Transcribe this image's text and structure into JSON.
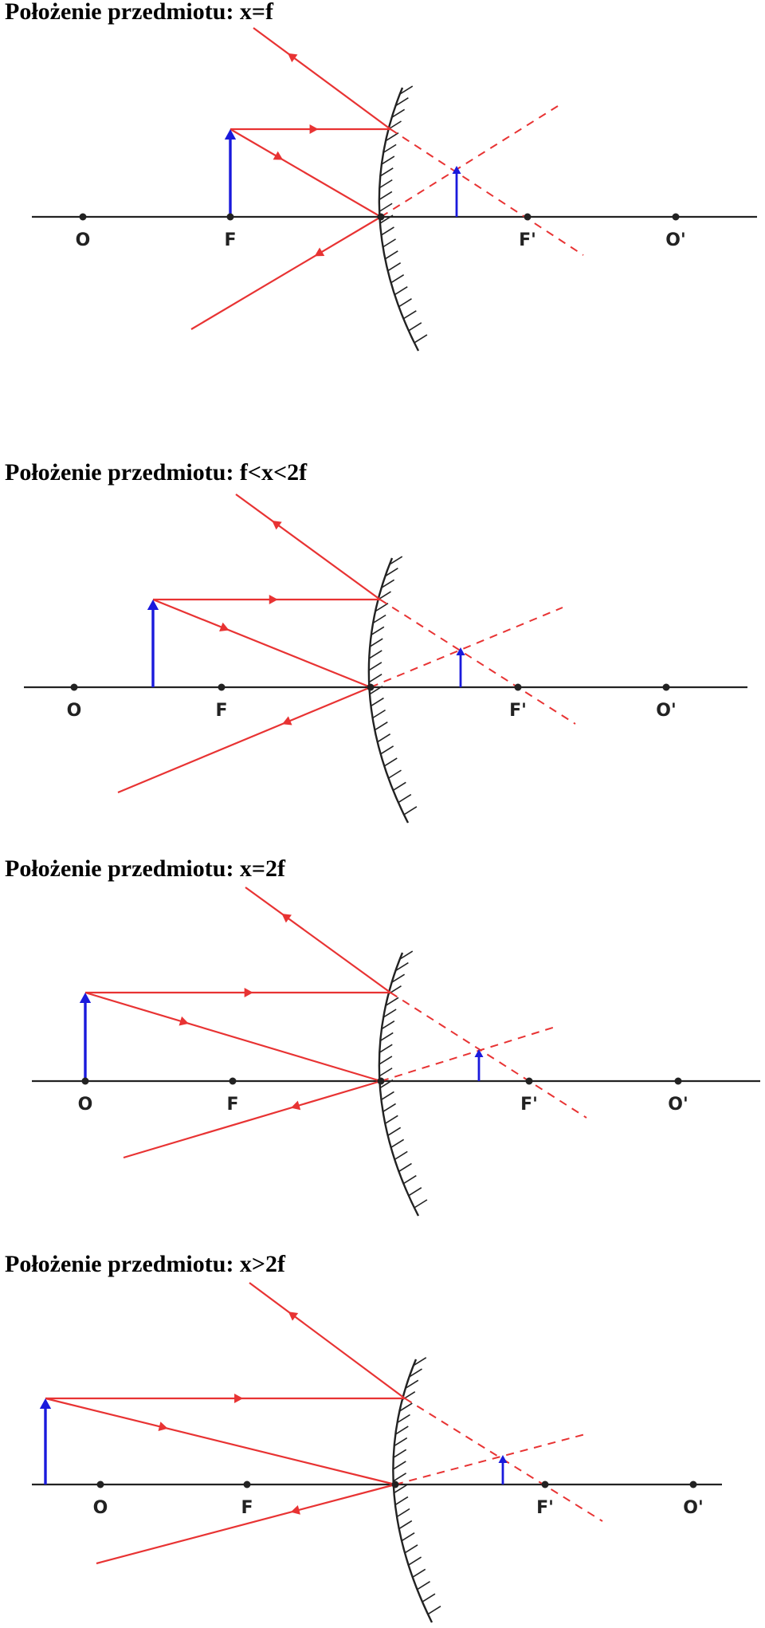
{
  "colors": {
    "ray": "#e83333",
    "object": "#1a1adc",
    "axis": "#222222",
    "mirror": "#222222"
  },
  "panels": [
    {
      "title": "Położenie przedmiotu: x=f",
      "labels": {
        "o": "O",
        "f": "F",
        "f2": "F'",
        "o2": "O'"
      }
    },
    {
      "title": "Położenie przedmiotu: f<x<2f",
      "labels": {
        "o": "O",
        "f": "F",
        "f2": "F'",
        "o2": "O'"
      }
    },
    {
      "title": "Położenie przedmiotu: x=2f",
      "labels": {
        "o": "O",
        "f": "F",
        "f2": "F'",
        "o2": "O'"
      }
    },
    {
      "title": "Położenie przedmiotu: x>2f",
      "labels": {
        "o": "O",
        "f": "F",
        "f2": "F'",
        "o2": "O'"
      }
    }
  ]
}
